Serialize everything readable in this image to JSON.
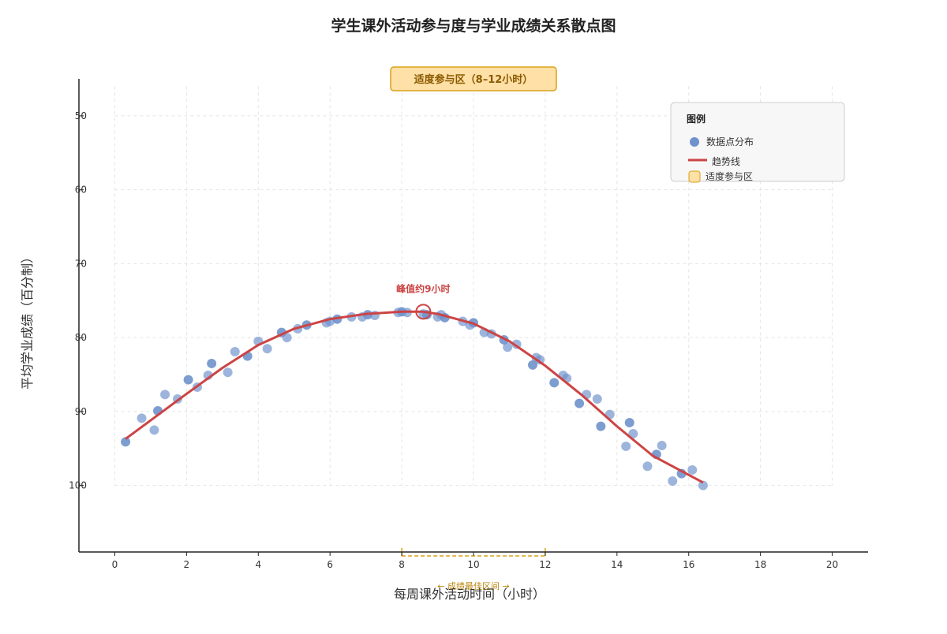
{
  "colors": {
    "points": "#6f92cc",
    "trend": "#cc4444",
    "zone_fill": "#ffe0a6",
    "zone_stroke": "#d9a21a",
    "grid": "#d9d9d9",
    "axis": "#222222",
    "legend_bg": "#f7f7f7",
    "legend_border": "#cccccc"
  },
  "chart_data": {
    "type": "scatter",
    "title": "学生课外活动参与度与学业成绩关系散点图",
    "xlabel": "每周课外活动时间（小时）",
    "ylabel": "平均学业成绩（百分制）",
    "xlim": [
      -1,
      21
    ],
    "ylim": [
      109,
      45
    ],
    "y_axis_reversed": true,
    "grid": true,
    "legend_position": "top-right",
    "xticks": [
      0,
      2,
      4,
      6,
      8,
      10,
      12,
      14,
      16,
      18,
      20
    ],
    "yticks": [
      50,
      60,
      70,
      80,
      90,
      100
    ],
    "legend": {
      "title": "图例",
      "points_label": "数据点分布",
      "trend_label": "趋势线",
      "zone_label": "适度参与区"
    },
    "annotations": {
      "zone_banner": "适度参与区（8–12小时）",
      "peak_label": "峰值约9小时",
      "range_label": "← 成绩最佳区间 →"
    },
    "optimal_range": [
      8,
      12
    ],
    "peak": {
      "x": 8.6,
      "y": 76.5
    },
    "series": [
      {
        "values": [
          [
            0.3,
            94.1
          ],
          [
            0.75,
            90.9
          ],
          [
            1.1,
            92.5
          ],
          [
            1.2,
            89.9
          ],
          [
            1.4,
            87.7
          ],
          [
            1.75,
            88.3
          ],
          [
            2.05,
            85.7
          ],
          [
            2.3,
            86.7
          ],
          [
            2.6,
            85.1
          ],
          [
            2.7,
            83.5
          ],
          [
            3.15,
            84.7
          ],
          [
            3.35,
            81.9
          ],
          [
            3.7,
            82.5
          ],
          [
            4.0,
            80.5
          ],
          [
            4.25,
            81.5
          ],
          [
            4.65,
            79.3
          ],
          [
            4.8,
            80.0
          ],
          [
            5.1,
            78.8
          ],
          [
            5.35,
            78.3
          ],
          [
            5.9,
            78.0
          ],
          [
            6.0,
            77.8
          ],
          [
            6.2,
            77.5
          ],
          [
            6.6,
            77.2
          ],
          [
            6.9,
            77.2
          ],
          [
            7.05,
            76.9
          ],
          [
            7.25,
            77.0
          ],
          [
            7.9,
            76.6
          ],
          [
            8.0,
            76.5
          ],
          [
            8.15,
            76.6
          ],
          [
            8.6,
            76.8
          ],
          [
            8.7,
            76.9
          ],
          [
            9.0,
            77.2
          ],
          [
            9.1,
            76.9
          ],
          [
            9.2,
            77.3
          ],
          [
            9.7,
            77.8
          ],
          [
            9.9,
            78.3
          ],
          [
            10.0,
            78.0
          ],
          [
            10.3,
            79.3
          ],
          [
            10.5,
            79.5
          ],
          [
            10.85,
            80.3
          ],
          [
            10.95,
            81.3
          ],
          [
            11.2,
            80.9
          ],
          [
            11.65,
            83.7
          ],
          [
            11.75,
            82.7
          ],
          [
            11.85,
            83.0
          ],
          [
            12.25,
            86.1
          ],
          [
            12.5,
            85.1
          ],
          [
            12.6,
            85.5
          ],
          [
            12.95,
            88.9
          ],
          [
            13.15,
            87.7
          ],
          [
            13.45,
            88.3
          ],
          [
            13.55,
            92.0
          ],
          [
            13.8,
            90.4
          ],
          [
            14.25,
            94.7
          ],
          [
            14.35,
            91.5
          ],
          [
            14.45,
            93.0
          ],
          [
            14.85,
            97.4
          ],
          [
            15.1,
            95.8
          ],
          [
            15.25,
            94.6
          ],
          [
            15.55,
            99.4
          ],
          [
            15.8,
            98.4
          ],
          [
            16.1,
            97.9
          ],
          [
            16.4,
            100.0
          ]
        ]
      }
    ],
    "trend_line": [
      [
        0.3,
        93.7
      ],
      [
        1.0,
        91.2
      ],
      [
        2.0,
        87.6
      ],
      [
        3.0,
        84.1
      ],
      [
        4.0,
        81.0
      ],
      [
        5.0,
        78.8
      ],
      [
        6.0,
        77.5
      ],
      [
        7.0,
        76.8
      ],
      [
        8.0,
        76.5
      ],
      [
        8.6,
        76.5
      ],
      [
        9.0,
        76.8
      ],
      [
        10.0,
        78.1
      ],
      [
        11.0,
        80.5
      ],
      [
        12.0,
        83.8
      ],
      [
        13.0,
        87.7
      ],
      [
        14.0,
        92.0
      ],
      [
        15.0,
        96.0
      ],
      [
        16.4,
        99.6
      ]
    ]
  }
}
